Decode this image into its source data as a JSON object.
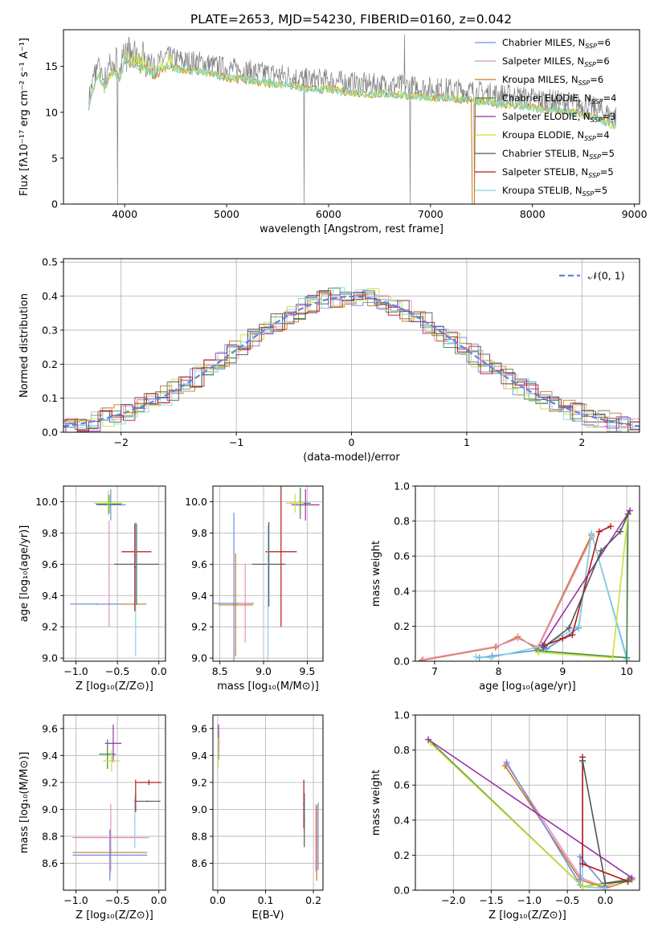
{
  "figure": {
    "title": "PLATE=2653, MJD=54230, FIBERID=0160, z=0.042"
  },
  "legend_colors": [
    "#6a8fe0",
    "#e88fc0",
    "#c87a1e",
    "#3f8a3f",
    "#9b2fa8",
    "#c6e03a",
    "#555555",
    "#b81818",
    "#7fd8e0"
  ],
  "chart_data": [
    {
      "id": "spectrum",
      "type": "line",
      "xlabel": "wavelength [Angstrom, rest frame]",
      "ylabel": "Flux [fλ10⁻¹⁷ erg cm⁻² s⁻¹ A⁻¹]",
      "xlim": [
        3400,
        9050
      ],
      "ylim": [
        0,
        19
      ],
      "xticks": [
        4000,
        5000,
        6000,
        7000,
        8000,
        9000
      ],
      "yticks": [
        0,
        5,
        10,
        15
      ],
      "grid": false,
      "legend": "upper-right",
      "legend_entries": [
        {
          "pre": "Chabrier MILES, N",
          "sub": "SSP",
          "post": "=6"
        },
        {
          "pre": "Salpeter MILES, N",
          "sub": "SSP",
          "post": "=6"
        },
        {
          "pre": "Kroupa MILES, N",
          "sub": "SSP",
          "post": "=6"
        },
        {
          "pre": "Chabrier ELODIE, N",
          "sub": "SSP",
          "post": "=4"
        },
        {
          "pre": "Salpeter ELODIE, N",
          "sub": "SSP",
          "post": "=3"
        },
        {
          "pre": "Kroupa ELODIE, N",
          "sub": "SSP",
          "post": "=4"
        },
        {
          "pre": "Chabrier STELIB, N",
          "sub": "SSP",
          "post": "=5"
        },
        {
          "pre": "Salpeter STELIB, N",
          "sub": "SSP",
          "post": "=5"
        },
        {
          "pre": "Kroupa STELIB, N",
          "sub": "SSP",
          "post": "=5"
        }
      ],
      "data_series": {
        "name": "data",
        "x": [
          3650,
          3700,
          3750,
          3800,
          3850,
          3900,
          3950,
          4000,
          4100,
          4200,
          4300,
          4400,
          4500,
          4600,
          4700,
          4800,
          4900,
          5000,
          5200,
          5400,
          5600,
          5800,
          6000,
          6200,
          6400,
          6600,
          6800,
          7000,
          7200,
          7400,
          7600,
          7800,
          8000,
          8200,
          8400,
          8600,
          8800
        ],
        "y": [
          11.5,
          14.0,
          15.0,
          13.5,
          15.0,
          15.5,
          14.5,
          16.5,
          16.0,
          15.8,
          15.0,
          16.0,
          15.8,
          15.5,
          15.5,
          15.3,
          15.0,
          14.8,
          14.5,
          14.2,
          14.0,
          13.5,
          13.5,
          13.2,
          13.0,
          13.0,
          12.8,
          12.6,
          12.5,
          12.3,
          12.0,
          11.8,
          11.5,
          11.2,
          11.0,
          10.5,
          9.5
        ]
      },
      "dips": [
        {
          "x": 3930,
          "y": 0.0
        },
        {
          "x": 3968,
          "y": 5.5
        },
        {
          "x": 4340,
          "y": 12.0
        },
        {
          "x": 5760,
          "y": 0.0
        },
        {
          "x": 6800,
          "y": 0.0
        },
        {
          "x": 7430,
          "y": 0.0
        }
      ]
    },
    {
      "id": "residuals",
      "type": "bar",
      "xlabel": "(data-model)/error",
      "ylabel": "Normed distribution",
      "xlim": [
        -2.5,
        2.5
      ],
      "ylim": [
        0,
        0.51
      ],
      "xticks": [
        -2,
        -1,
        0,
        1,
        2
      ],
      "yticks": [
        0.0,
        0.1,
        0.2,
        0.3,
        0.4,
        0.5
      ],
      "grid": true,
      "legend": "upper-right",
      "legend_entries": [
        "𝒩(0, 1)"
      ],
      "bin_width": 0.1,
      "reference_curve": "gaussian mean 0 sigma 1"
    },
    {
      "id": "age-vs-z",
      "type": "scatter",
      "xlabel": "Z [log₁₀(Z/Z⊙)]",
      "ylabel": "age  [log₁₀(age/yr)]",
      "xlim": [
        -1.15,
        0.08
      ],
      "ylim": [
        8.98,
        10.1
      ],
      "xticks": [
        -1.0,
        -0.5,
        0.0
      ],
      "yticks": [
        9.0,
        9.2,
        9.4,
        9.6,
        9.8,
        10.0
      ],
      "grid": true,
      "points": [
        {
          "x": -0.58,
          "y": 9.98,
          "ex": 0.18,
          "ey": 0.1,
          "c": 0
        },
        {
          "x": -0.6,
          "y": 9.985,
          "ex": 0.15,
          "ey": 0.06,
          "c": 3
        },
        {
          "x": -0.61,
          "y": 9.99,
          "ex": 0.17,
          "ey": 0.08,
          "c": 5
        },
        {
          "x": -0.6,
          "y": 9.54,
          "ex": 0.0,
          "ey": 0.34,
          "c": 1
        },
        {
          "x": -0.6,
          "y": 9.345,
          "ex": 0.45,
          "ey": 0.0,
          "c": 2
        },
        {
          "x": -0.75,
          "y": 9.345,
          "ex": 0.32,
          "ey": 0.0,
          "c": 0
        },
        {
          "x": -0.27,
          "y": 9.68,
          "ex": 0.18,
          "ey": 0.0,
          "c": 7
        },
        {
          "x": -0.27,
          "y": 9.6,
          "ex": 0.27,
          "ey": 0.26,
          "c": 6
        },
        {
          "x": -0.28,
          "y": 9.44,
          "ex": 0.0,
          "ey": 0.43,
          "c": 8
        },
        {
          "x": -0.29,
          "y": 9.58,
          "ex": 0.0,
          "ey": 0.28,
          "c": 7
        }
      ]
    },
    {
      "id": "age-vs-mass",
      "type": "scatter",
      "xlabel": "mass [log₁₀(M/M⊙)]",
      "ylabel": "",
      "xlim": [
        8.42,
        9.68
      ],
      "ylim": [
        8.98,
        10.1
      ],
      "xticks": [
        8.5,
        9.0,
        9.5
      ],
      "yticks": [
        9.0,
        9.2,
        9.4,
        9.6,
        9.8,
        10.0
      ],
      "grid": true,
      "points": [
        {
          "x": 9.48,
          "y": 9.98,
          "ex": 0.16,
          "ey": 0.1,
          "c": 4
        },
        {
          "x": 9.42,
          "y": 9.99,
          "ex": 0.12,
          "ey": 0.1,
          "c": 3
        },
        {
          "x": 9.36,
          "y": 9.99,
          "ex": 0.1,
          "ey": 0.06,
          "c": 5
        },
        {
          "x": 8.66,
          "y": 9.35,
          "ex": 0.23,
          "ey": 0.58,
          "c": 0
        },
        {
          "x": 8.79,
          "y": 9.35,
          "ex": 0.08,
          "ey": 0.25,
          "c": 1
        },
        {
          "x": 8.68,
          "y": 9.34,
          "ex": 0.2,
          "ey": 0.33,
          "c": 2
        },
        {
          "x": 9.2,
          "y": 9.68,
          "ex": 0.18,
          "ey": 0.48,
          "c": 7
        },
        {
          "x": 9.06,
          "y": 9.6,
          "ex": 0.19,
          "ey": 0.27,
          "c": 6
        },
        {
          "x": 9.05,
          "y": 9.4,
          "ex": 0.0,
          "ey": 0.45,
          "c": 8
        }
      ]
    },
    {
      "id": "weight-vs-age",
      "type": "line",
      "xlabel": "age  [log₁₀(age/yr)]",
      "ylabel": "mass weight",
      "xlim": [
        6.7,
        10.2
      ],
      "ylim": [
        0.0,
        1.0
      ],
      "xticks": [
        7,
        8,
        9,
        10
      ],
      "yticks": [
        0.0,
        0.2,
        0.4,
        0.6,
        0.8,
        1.0
      ],
      "grid": true,
      "series": [
        {
          "c": 2,
          "x": [
            6.8,
            7.95,
            8.3,
            8.6,
            9.45
          ],
          "y": [
            0.005,
            0.08,
            0.14,
            0.07,
            0.72
          ]
        },
        {
          "c": 1,
          "x": [
            6.82,
            7.97,
            8.3,
            8.62,
            9.46
          ],
          "y": [
            0.01,
            0.085,
            0.13,
            0.08,
            0.71
          ]
        },
        {
          "c": 0,
          "x": [
            7.7,
            7.9,
            8.75,
            9.25,
            9.45,
            10.0
          ],
          "y": [
            0.02,
            0.03,
            0.07,
            0.19,
            0.73,
            0.02
          ]
        },
        {
          "c": 8,
          "x": [
            7.65,
            7.88,
            8.72,
            9.25,
            9.45,
            10.0
          ],
          "y": [
            0.025,
            0.02,
            0.09,
            0.2,
            0.73,
            0.01
          ]
        },
        {
          "c": 3,
          "x": [
            8.62,
            10.0,
            10.02,
            10.05
          ],
          "y": [
            0.06,
            0.02,
            0.84,
            0.86
          ]
        },
        {
          "c": 5,
          "x": [
            8.62,
            9.78,
            10.02
          ],
          "y": [
            0.05,
            0.02,
            0.84
          ]
        },
        {
          "c": 4,
          "x": [
            8.68,
            10.05
          ],
          "y": [
            0.09,
            0.86
          ]
        },
        {
          "c": 7,
          "x": [
            8.72,
            9.0,
            9.15,
            9.57,
            9.75
          ],
          "y": [
            0.09,
            0.13,
            0.15,
            0.74,
            0.77
          ]
        },
        {
          "c": 6,
          "x": [
            8.7,
            9.1,
            9.6,
            9.9,
            10.02
          ],
          "y": [
            0.08,
            0.19,
            0.63,
            0.74,
            0.84
          ]
        }
      ]
    },
    {
      "id": "mass-vs-z",
      "type": "scatter",
      "xlabel": "Z [log₁₀(Z/Z⊙)]",
      "ylabel": "mass [log₁₀(M/M⊙)]",
      "xlim": [
        -1.15,
        0.08
      ],
      "ylim": [
        8.4,
        9.7
      ],
      "xticks": [
        -1.0,
        -0.5,
        0.0
      ],
      "yticks": [
        8.6,
        8.8,
        9.0,
        9.2,
        9.4,
        9.6
      ],
      "grid": true,
      "points": [
        {
          "x": -0.55,
          "y": 9.49,
          "ex": 0.1,
          "ey": 0.14,
          "c": 4
        },
        {
          "x": -0.62,
          "y": 9.41,
          "ex": 0.1,
          "ey": 0.11,
          "c": 3
        },
        {
          "x": -0.57,
          "y": 9.36,
          "ex": 0.1,
          "ey": 0.08,
          "c": 5
        },
        {
          "x": -0.58,
          "y": 8.79,
          "ex": 0.46,
          "ey": 0.25,
          "c": 1
        },
        {
          "x": -0.59,
          "y": 8.68,
          "ex": 0.45,
          "ey": 0.17,
          "c": 2
        },
        {
          "x": -0.59,
          "y": 8.66,
          "ex": 0.45,
          "ey": 0.19,
          "c": 0
        },
        {
          "x": -0.12,
          "y": 9.2,
          "ex": 0.15,
          "ey": 0.02,
          "c": 7
        },
        {
          "x": -0.14,
          "y": 9.06,
          "ex": 0.16,
          "ey": 0.0,
          "c": 6
        },
        {
          "x": -0.29,
          "y": 8.9,
          "ex": 0.0,
          "ey": 0.19,
          "c": 8
        },
        {
          "x": -0.28,
          "y": 9.1,
          "ex": 0.0,
          "ey": 0.12,
          "c": 7
        }
      ]
    },
    {
      "id": "mass-vs-ebv",
      "type": "scatter",
      "xlabel": "E(B-V)",
      "ylabel": "",
      "xlim": [
        -0.01,
        0.22
      ],
      "ylim": [
        8.4,
        9.7
      ],
      "xticks": [
        0.0,
        0.1,
        0.2
      ],
      "yticks": [
        8.6,
        8.8,
        9.0,
        9.2,
        9.4,
        9.6
      ],
      "grid": true,
      "points": [
        {
          "x": 0.002,
          "y": 9.5,
          "ex": 0.0,
          "ey": 0.13,
          "c": 4
        },
        {
          "x": 0.001,
          "y": 9.42,
          "ex": 0.0,
          "ey": 0.11,
          "c": 5
        },
        {
          "x": 0.18,
          "y": 9.04,
          "ex": 0.0,
          "ey": 0.18,
          "c": 7
        },
        {
          "x": 0.181,
          "y": 8.92,
          "ex": 0.0,
          "ey": 0.2,
          "c": 6
        },
        {
          "x": 0.205,
          "y": 8.79,
          "ex": 0.0,
          "ey": 0.25,
          "c": 1
        },
        {
          "x": 0.207,
          "y": 8.75,
          "ex": 0.0,
          "ey": 0.28,
          "c": 2
        },
        {
          "x": 0.21,
          "y": 8.8,
          "ex": 0.0,
          "ey": 0.25,
          "c": 0
        }
      ]
    },
    {
      "id": "weight-vs-z",
      "type": "line",
      "xlabel": "Z [log₁₀(Z/Z⊙)]",
      "ylabel": "mass weight",
      "xlim": [
        -2.5,
        0.45
      ],
      "ylim": [
        0.0,
        1.0
      ],
      "xticks": [
        -2.0,
        -1.5,
        -1.0,
        -0.5,
        0.0
      ],
      "yticks": [
        0.0,
        0.2,
        0.4,
        0.6,
        0.8,
        1.0
      ],
      "grid": true,
      "series": [
        {
          "c": 2,
          "x": [
            -1.32,
            -0.33,
            0.0,
            0.35
          ],
          "y": [
            0.71,
            0.06,
            0.01,
            0.06
          ]
        },
        {
          "c": 1,
          "x": [
            -1.3,
            -0.32,
            -0.02,
            0.33
          ],
          "y": [
            0.72,
            0.07,
            0.02,
            0.07
          ]
        },
        {
          "c": 0,
          "x": [
            -1.3,
            -0.33,
            -0.33,
            0.0
          ],
          "y": [
            0.73,
            0.03,
            0.19,
            0.02
          ]
        },
        {
          "c": 8,
          "x": [
            -0.3,
            -0.3,
            0.0
          ],
          "y": [
            0.73,
            0.02,
            0.01
          ]
        },
        {
          "c": 3,
          "x": [
            -2.33,
            -0.3,
            0.3
          ],
          "y": [
            0.86,
            0.02,
            0.06
          ]
        },
        {
          "c": 5,
          "x": [
            -2.3,
            -0.3,
            0.28
          ],
          "y": [
            0.84,
            0.02,
            0.05
          ]
        },
        {
          "c": 4,
          "x": [
            -2.33,
            0.35
          ],
          "y": [
            0.86,
            0.07
          ]
        },
        {
          "c": 7,
          "x": [
            -0.3,
            -0.3,
            0.3
          ],
          "y": [
            0.76,
            0.15,
            0.05
          ]
        },
        {
          "c": 6,
          "x": [
            -0.3,
            0.0,
            0.3
          ],
          "y": [
            0.74,
            0.04,
            0.05
          ]
        }
      ]
    }
  ]
}
